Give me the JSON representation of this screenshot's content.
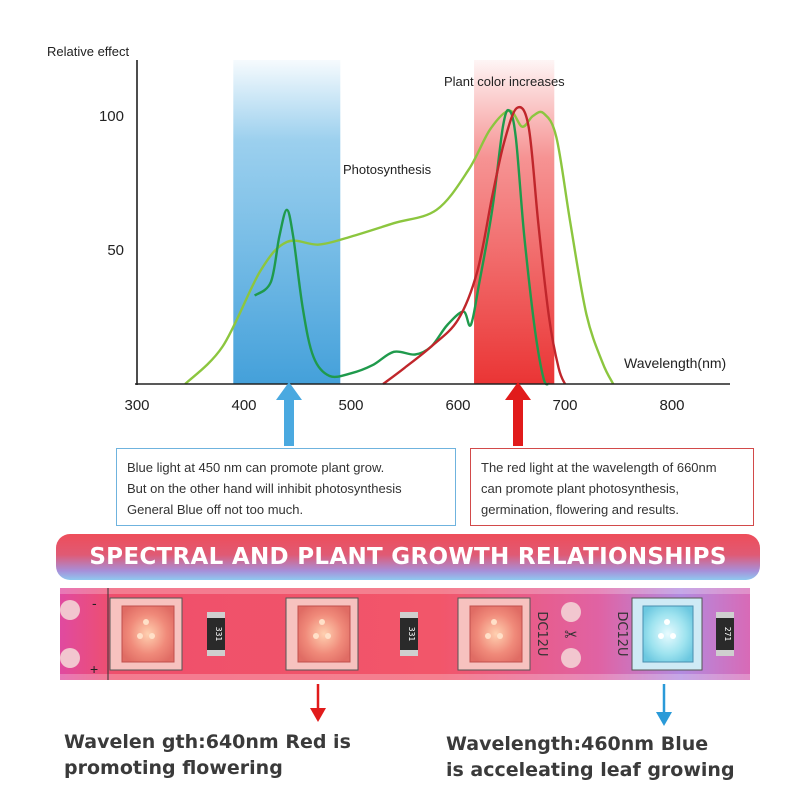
{
  "chart_data": {
    "type": "line",
    "ylabel": "Relative effect",
    "xlabel": "Wavelength(nm)",
    "x_ticks": [
      "300",
      "400",
      "500",
      "600",
      "700",
      "800"
    ],
    "y_ticks": [
      "100",
      "50"
    ],
    "xlim": [
      300,
      850
    ],
    "ylim": [
      0,
      115
    ],
    "bands": [
      {
        "from": 390,
        "to": 490,
        "color": "#4aa9e0"
      },
      {
        "from": 615,
        "to": 690,
        "color": "#ee3b3b"
      }
    ],
    "annotations": {
      "photosynthesis": "Photosynthesis",
      "plant_color": "Plant color increases"
    },
    "series": [
      {
        "color": "#8cc63f",
        "points": [
          [
            345,
            0
          ],
          [
            380,
            14
          ],
          [
            415,
            42
          ],
          [
            440,
            53
          ],
          [
            470,
            52
          ],
          [
            500,
            55
          ],
          [
            540,
            60
          ],
          [
            580,
            65
          ],
          [
            610,
            80
          ],
          [
            630,
            95
          ],
          [
            648,
            102
          ],
          [
            660,
            96
          ],
          [
            670,
            100
          ],
          [
            680,
            101
          ],
          [
            692,
            92
          ],
          [
            705,
            60
          ],
          [
            720,
            26
          ],
          [
            735,
            8
          ],
          [
            745,
            0
          ]
        ]
      },
      {
        "color": "#1f9a4c",
        "points": [
          [
            410,
            33
          ],
          [
            425,
            38
          ],
          [
            433,
            55
          ],
          [
            440,
            65
          ],
          [
            446,
            55
          ],
          [
            455,
            28
          ],
          [
            465,
            10
          ],
          [
            480,
            3
          ],
          [
            500,
            4
          ],
          [
            520,
            7
          ],
          [
            540,
            12
          ],
          [
            560,
            11
          ],
          [
            575,
            14
          ],
          [
            590,
            22
          ],
          [
            605,
            27
          ],
          [
            612,
            22
          ],
          [
            620,
            38
          ],
          [
            632,
            65
          ],
          [
            642,
            96
          ],
          [
            648,
            102
          ],
          [
            654,
            92
          ],
          [
            662,
            55
          ],
          [
            672,
            20
          ],
          [
            680,
            2
          ],
          [
            685,
            0
          ]
        ]
      },
      {
        "color": "#c0262b",
        "points": [
          [
            530,
            0
          ],
          [
            550,
            6
          ],
          [
            575,
            14
          ],
          [
            600,
            24
          ],
          [
            618,
            42
          ],
          [
            632,
            70
          ],
          [
            643,
            90
          ],
          [
            655,
            103
          ],
          [
            666,
            96
          ],
          [
            675,
            60
          ],
          [
            685,
            25
          ],
          [
            694,
            6
          ],
          [
            700,
            0
          ]
        ]
      }
    ]
  },
  "callouts": {
    "blue": [
      "Blue light at 450 nm can promote plant grow.",
      "But on the other hand will inhibit photosynthesis",
      "General Blue off not too much."
    ],
    "red": [
      "The red light at the wavelength of 660nm",
      "can promote plant photosynthesis,",
      "germination, flowering and results."
    ]
  },
  "banner": "SPECTRAL AND PLANT GROWTH RELATIONSHIPS",
  "strip": {
    "dc_label": "DC12U",
    "resistor_left": "331",
    "resistor_mid": "331",
    "resistor_right": "271",
    "minus": "-",
    "plus": "+"
  },
  "bottom": {
    "left": [
      "Wavelen gth:640nm Red is",
      "promoting flowering"
    ],
    "right": [
      "Wavelength:460nm Blue",
      "is acceleating leaf growing"
    ]
  },
  "colors": {
    "blue_band": "#4aa9e0",
    "red_band": "#ee3b3b",
    "blue_arrow": "#4aa9e0",
    "red_arrow": "#e11b1b",
    "red_led": "#f08a7a",
    "blue_led": "#9ee3ef"
  }
}
